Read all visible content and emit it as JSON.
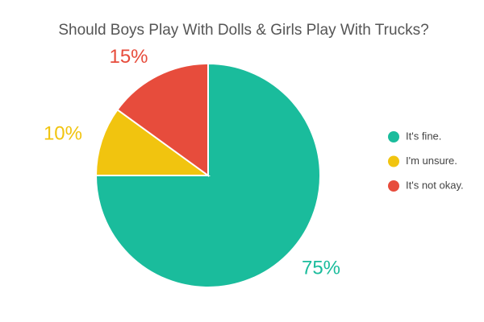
{
  "chart_data": {
    "type": "pie",
    "title": "Should Boys Play With Dolls & Girls Play With Trucks?",
    "categories": [
      "It's fine.",
      "I'm unsure.",
      "It's not okay."
    ],
    "values": [
      75,
      10,
      15
    ],
    "value_labels": [
      "75%",
      "10%",
      "15%"
    ],
    "colors": [
      "#1abc9c",
      "#f1c40f",
      "#e74c3c"
    ],
    "legend": "right"
  }
}
